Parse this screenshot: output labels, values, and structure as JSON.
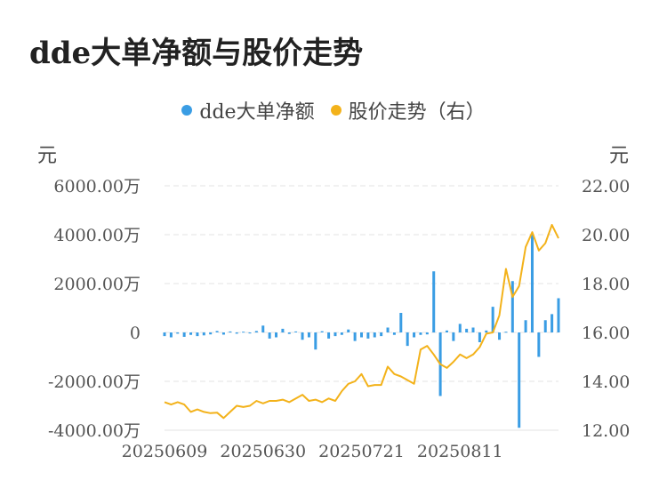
{
  "title": "dde大单净额与股价走势",
  "colors": {
    "bar": "#3a9de4",
    "line": "#f3b21a",
    "grid": "#e3e3e3",
    "axis_text": "#555555"
  },
  "legend": {
    "left_label": "dde大单净额",
    "right_label": "股价走势（右）"
  },
  "axis": {
    "left_unit": "元",
    "right_unit": "元"
  },
  "chart_data": {
    "type": "bar+line",
    "title": "dde大单净额与股价走势",
    "x_ticks": [
      "20250609",
      "20250630",
      "20250721",
      "20250811"
    ],
    "x_tick_index": [
      0,
      15,
      30,
      45
    ],
    "y_left": {
      "ticks": [
        "-4000.00万",
        "-2000.00万",
        "0",
        "2000.00万",
        "4000.00万",
        "6000.00万"
      ],
      "range": [
        -4000,
        6000
      ],
      "unit": "万元"
    },
    "y_right": {
      "ticks": [
        "12.00",
        "14.00",
        "16.00",
        "18.00",
        "20.00",
        "22.00"
      ],
      "range": [
        12,
        22
      ]
    },
    "grid": true,
    "legend_position": "top-center",
    "series": [
      {
        "name": "dde大单净额",
        "type": "bar",
        "axis": "left",
        "values": [
          -150,
          -200,
          -50,
          -180,
          -100,
          -150,
          -120,
          -80,
          60,
          -90,
          40,
          -50,
          30,
          -40,
          60,
          280,
          -250,
          -200,
          150,
          -60,
          40,
          -300,
          -200,
          -700,
          50,
          -250,
          -150,
          -100,
          120,
          -350,
          -200,
          -250,
          -200,
          -150,
          200,
          -100,
          800,
          -550,
          -200,
          -100,
          -80,
          2500,
          -2600,
          80,
          -350,
          350,
          150,
          200,
          -400,
          80,
          1050,
          -300,
          30,
          2100,
          -3900,
          500,
          4000,
          -1000,
          500,
          750,
          1400
        ]
      },
      {
        "name": "股价走势",
        "type": "line",
        "axis": "right",
        "values": [
          13.15,
          13.05,
          13.15,
          13.05,
          12.75,
          12.85,
          12.75,
          12.7,
          12.72,
          12.5,
          12.75,
          13.0,
          12.95,
          13.0,
          13.2,
          13.1,
          13.2,
          13.2,
          13.25,
          13.15,
          13.3,
          13.45,
          13.2,
          13.25,
          13.15,
          13.3,
          13.2,
          13.6,
          13.9,
          14.0,
          14.3,
          13.8,
          13.85,
          13.85,
          14.6,
          14.3,
          14.2,
          14.05,
          13.9,
          15.3,
          15.45,
          15.1,
          14.7,
          14.55,
          14.8,
          15.1,
          14.95,
          15.1,
          15.4,
          15.95,
          16.0,
          16.7,
          18.6,
          17.45,
          17.9,
          19.5,
          20.1,
          19.35,
          19.65,
          20.4,
          19.85
        ]
      }
    ]
  }
}
